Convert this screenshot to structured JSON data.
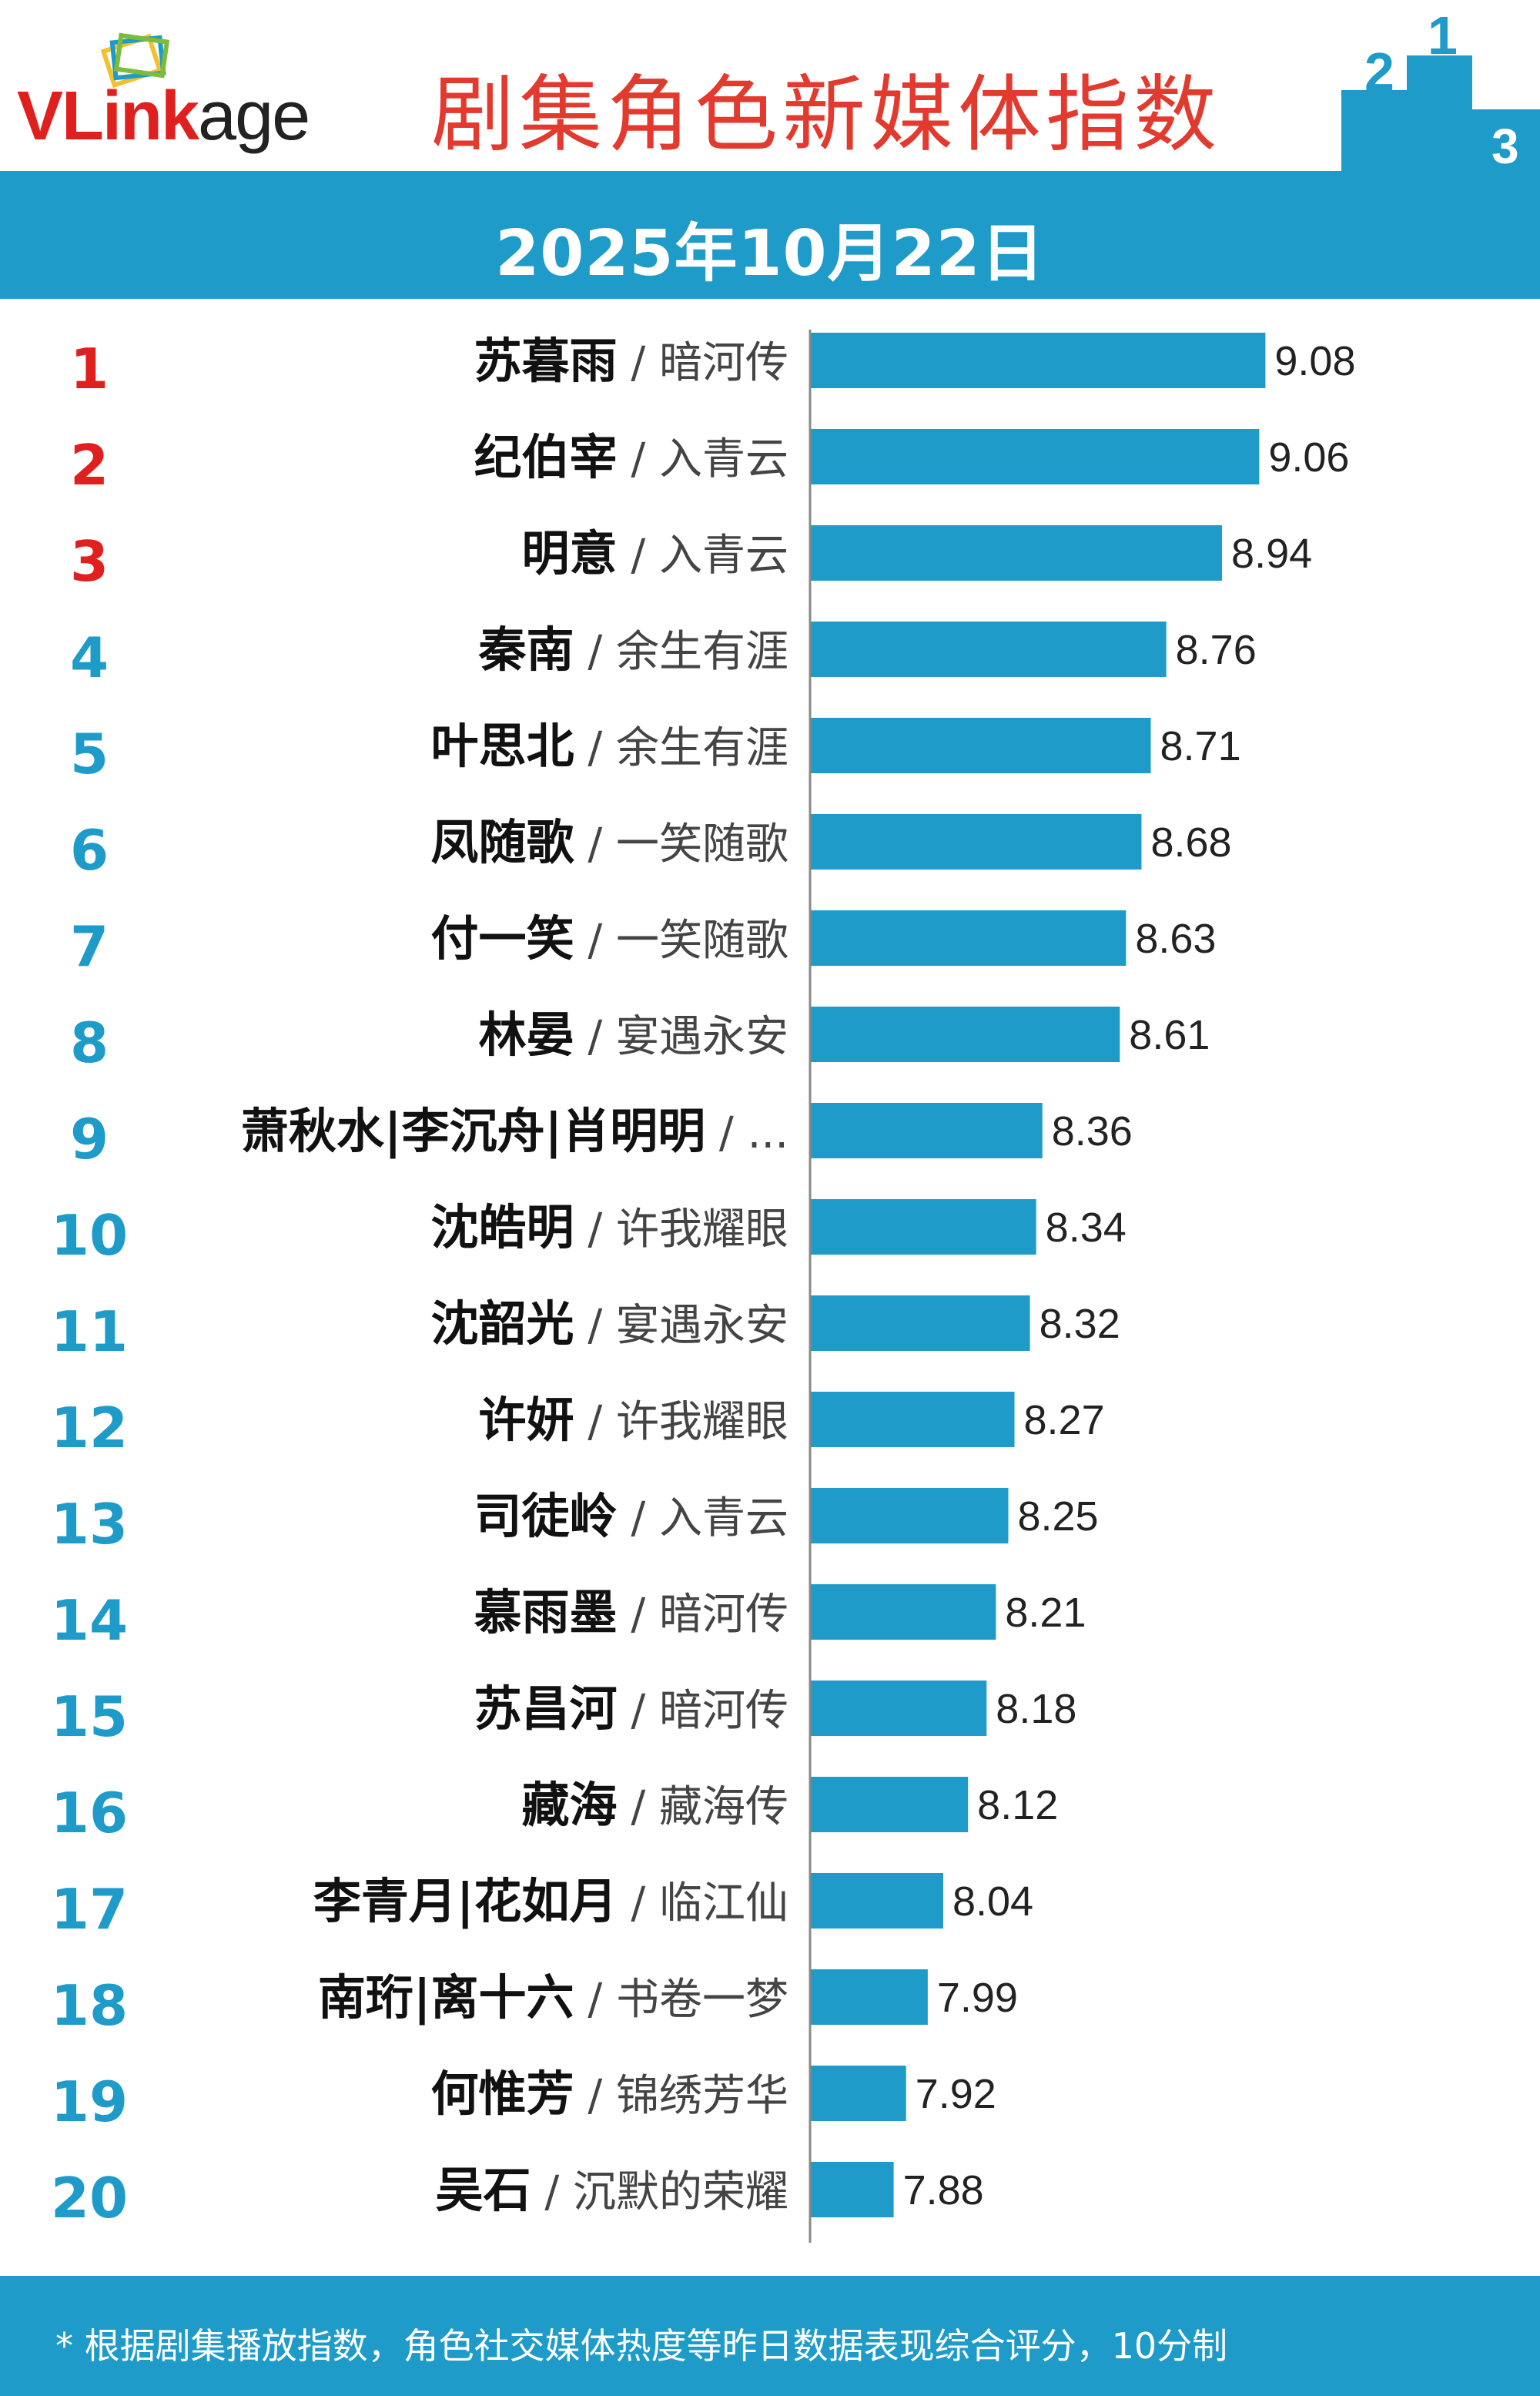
{
  "header": {
    "logo_prefix": "VLink",
    "logo_suffix": "age",
    "title": "剧集角色新媒体指数",
    "date": "2025年10月22日"
  },
  "colors": {
    "accent": "#1e9bc8",
    "bar": "#1e9bc8",
    "top_rank": "#e0201e",
    "rank": "#1e9bc8",
    "title": "#e23a2e"
  },
  "footer": {
    "note": "* 根据剧集播放指数，角色社交媒体热度等昨日数据表现综合评分，10分制"
  },
  "chart_data": {
    "type": "bar",
    "orientation": "horizontal",
    "title": "剧集角色新媒体指数",
    "subtitle": "2025年10月22日",
    "xlim": [
      7.61,
      9.35
    ],
    "grid": false,
    "categories": [
      {
        "rank": "1",
        "name": "苏暮雨",
        "show": "暗河传"
      },
      {
        "rank": "2",
        "name": "纪伯宰",
        "show": "入青云"
      },
      {
        "rank": "3",
        "name": "明意",
        "show": "入青云"
      },
      {
        "rank": "4",
        "name": "秦南",
        "show": "余生有涯"
      },
      {
        "rank": "5",
        "name": "叶思北",
        "show": "余生有涯"
      },
      {
        "rank": "6",
        "name": "凤随歌",
        "show": "一笑随歌"
      },
      {
        "rank": "7",
        "name": "付一笑",
        "show": "一笑随歌"
      },
      {
        "rank": "8",
        "name": "林晏",
        "show": "宴遇永安"
      },
      {
        "rank": "9",
        "name": "萧秋水|李沉舟|肖明明",
        "show": "..."
      },
      {
        "rank": "10",
        "name": "沈皓明",
        "show": "许我耀眼"
      },
      {
        "rank": "11",
        "name": "沈韶光",
        "show": "宴遇永安"
      },
      {
        "rank": "12",
        "name": "许妍",
        "show": "许我耀眼"
      },
      {
        "rank": "13",
        "name": "司徒岭",
        "show": "入青云"
      },
      {
        "rank": "14",
        "name": "慕雨墨",
        "show": "暗河传"
      },
      {
        "rank": "15",
        "name": "苏昌河",
        "show": "暗河传"
      },
      {
        "rank": "16",
        "name": "藏海",
        "show": "藏海传"
      },
      {
        "rank": "17",
        "name": "李青月|花如月",
        "show": "临江仙"
      },
      {
        "rank": "18",
        "name": "南珩|离十六",
        "show": "书卷一梦"
      },
      {
        "rank": "19",
        "name": "何惟芳",
        "show": "锦绣芳华"
      },
      {
        "rank": "20",
        "name": "吴石",
        "show": "沉默的荣耀"
      }
    ],
    "values": [
      9.08,
      9.06,
      8.94,
      8.76,
      8.71,
      8.68,
      8.63,
      8.61,
      8.36,
      8.34,
      8.32,
      8.27,
      8.25,
      8.21,
      8.18,
      8.12,
      8.04,
      7.99,
      7.92,
      7.88
    ],
    "value_labels": [
      "9.08",
      "9.06",
      "8.94",
      "8.76",
      "8.71",
      "8.68",
      "8.63",
      "8.61",
      "8.36",
      "8.34",
      "8.32",
      "8.27",
      "8.25",
      "8.21",
      "8.18",
      "8.12",
      "8.04",
      "7.99",
      "7.92",
      "7.88"
    ]
  }
}
